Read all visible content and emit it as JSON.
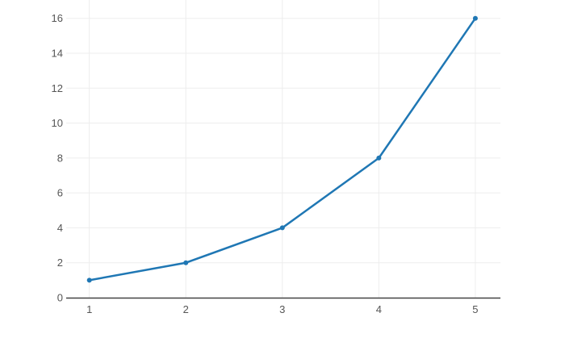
{
  "chart_data": {
    "type": "line",
    "title": "",
    "xlabel": "",
    "ylabel": "",
    "x": [
      1,
      2,
      3,
      4,
      5
    ],
    "y": [
      1,
      2,
      4,
      8,
      16
    ],
    "x_ticks": [
      1,
      2,
      3,
      4,
      5
    ],
    "y_ticks": [
      0,
      2,
      4,
      6,
      8,
      10,
      12,
      14,
      16
    ],
    "xlim": [
      0.76,
      5.26
    ],
    "ylim": [
      0,
      17.05
    ],
    "grid": true,
    "legend": false,
    "colors": {
      "line": "#1f77b4",
      "marker": "#1f77b4",
      "grid": "#ededed",
      "axis_line": "#444444",
      "tick_label": "#555555",
      "background": "#ffffff"
    }
  }
}
